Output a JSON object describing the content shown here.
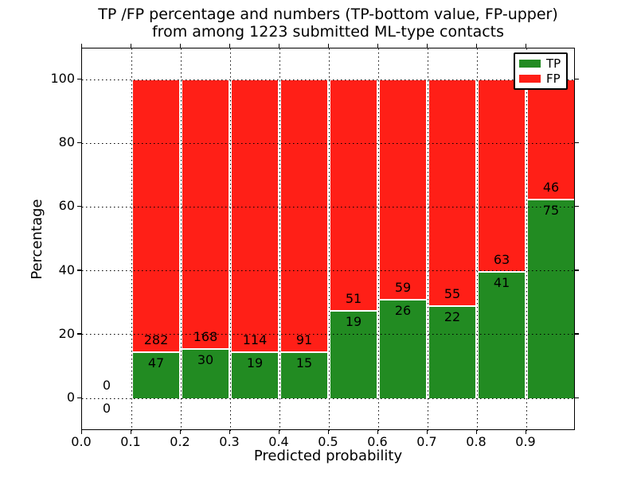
{
  "chart_data": {
    "type": "bar",
    "subtype": "stacked_percentage_histogram",
    "title_lines": [
      "TP /FP percentage and numbers (TP-bottom value, FP-upper)",
      "from among 1223 submitted ML-type contacts"
    ],
    "total_contacts": 1223,
    "xlabel": "Predicted probability",
    "ylabel": "Percentage",
    "bin_edges": [
      0.0,
      0.1,
      0.2,
      0.3,
      0.4,
      0.5,
      0.6,
      0.7,
      0.8,
      0.9,
      1.0
    ],
    "categories": [
      "0.0-0.1",
      "0.1-0.2",
      "0.2-0.3",
      "0.3-0.4",
      "0.4-0.5",
      "0.5-0.6",
      "0.6-0.7",
      "0.7-0.8",
      "0.8-0.9",
      "0.9-1.0"
    ],
    "series": [
      {
        "name": "TP",
        "color": "#228b22",
        "counts": [
          0,
          47,
          30,
          19,
          15,
          19,
          26,
          22,
          41,
          75
        ]
      },
      {
        "name": "FP",
        "color": "#ff1f17",
        "counts": [
          0,
          282,
          168,
          114,
          91,
          51,
          59,
          55,
          63,
          46
        ]
      }
    ],
    "tp_percent": [
      null,
      14.29,
      15.15,
      14.29,
      14.15,
      27.14,
      30.59,
      28.57,
      39.42,
      61.98
    ],
    "stack_top_percent": 100,
    "annotation_scheme": "FP count printed just above TP/FP boundary, TP count just below it",
    "xticklabels": [
      "0.0",
      "0.1",
      "0.2",
      "0.3",
      "0.4",
      "0.5",
      "0.6",
      "0.7",
      "0.8",
      "0.9"
    ],
    "yticks": [
      0,
      20,
      40,
      60,
      80,
      100
    ],
    "xlim": [
      0.0,
      1.0
    ],
    "ylim": [
      -10.2,
      109.8
    ],
    "grid": {
      "on": true,
      "style": "dotted",
      "color": "#000000",
      "axes": "both"
    },
    "legend": {
      "position": "upper right",
      "entries": [
        {
          "label": "TP",
          "color": "#228b22"
        },
        {
          "label": "FP",
          "color": "#ff1f17"
        }
      ]
    },
    "background_color": "#ffffff",
    "bar_edge_color": "#ffffff"
  }
}
